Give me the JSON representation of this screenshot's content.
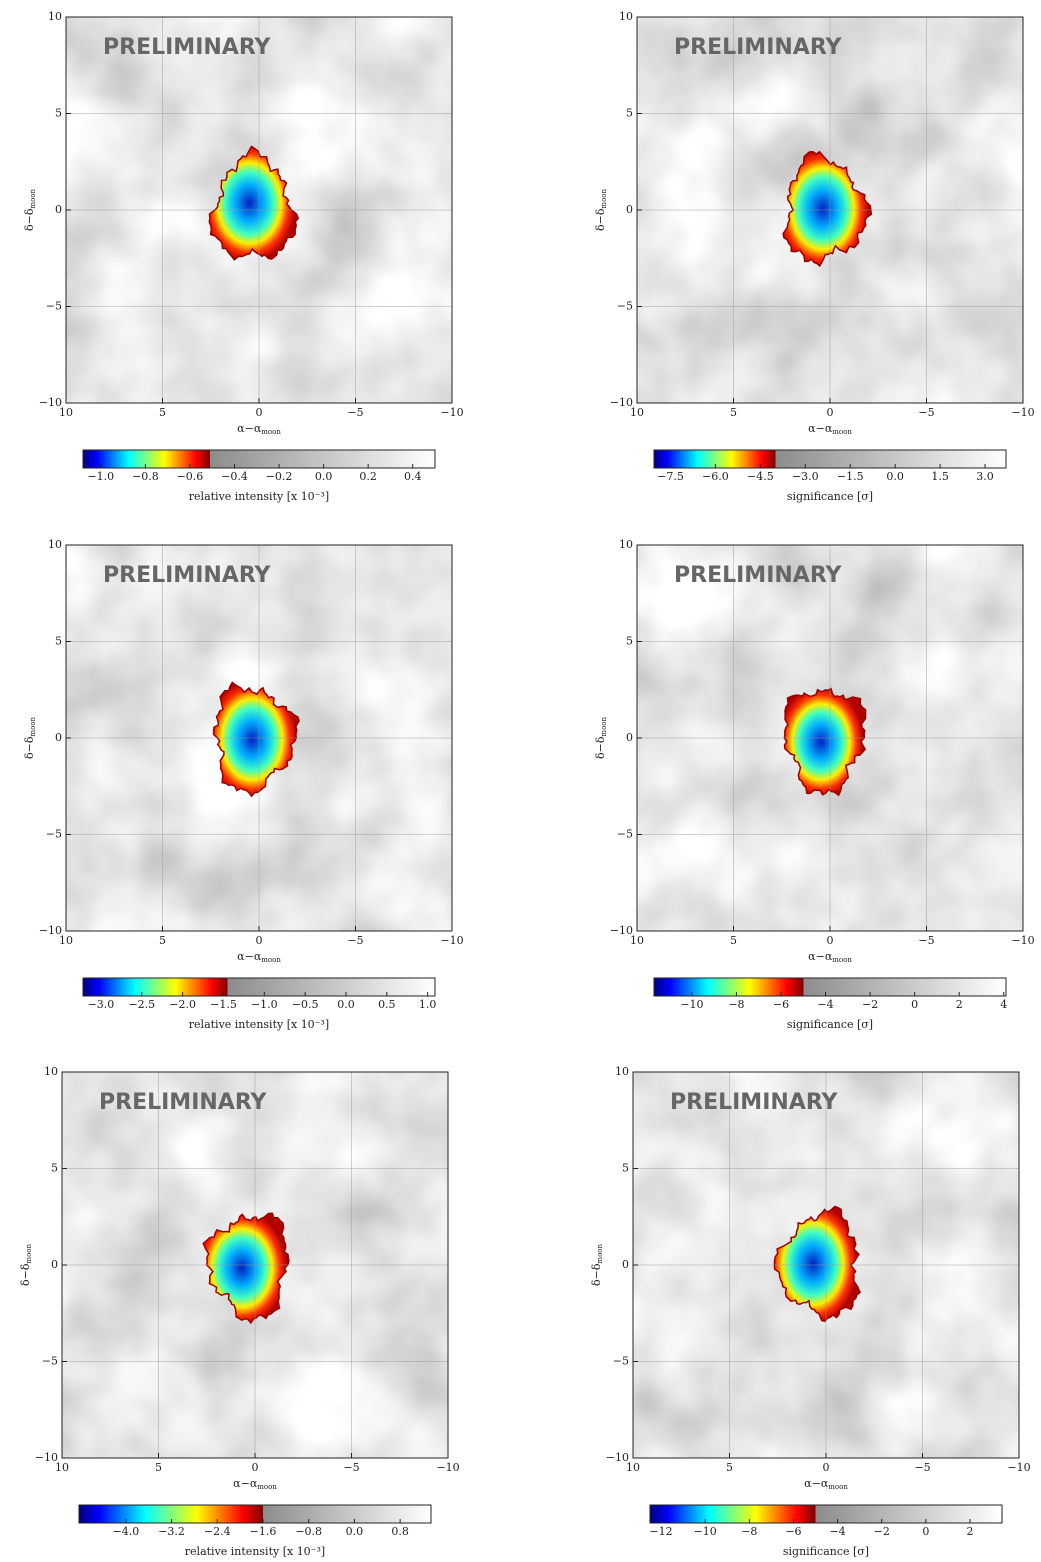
{
  "chart_data": [
    {
      "type": "heatmap",
      "annotation": "PRELIMINARY",
      "xlabel": "α−α",
      "xlabel_subscript": "moon",
      "ylabel": "δ−δ",
      "ylabel_subscript": "moon",
      "xlim": [
        10,
        -10
      ],
      "ylim": [
        -10,
        10
      ],
      "grid": true,
      "xticks": [
        10,
        5,
        0,
        {
          "value": -5,
          "label": "−5"
        },
        {
          "value": -10,
          "label": "−10"
        }
      ],
      "yticks": [
        {
          "value": -10,
          "label": "−10"
        },
        {
          "value": -5,
          "label": "−5"
        },
        0,
        5,
        10
      ],
      "colorbar": {
        "label": "relative intensity [x 10⁻³]",
        "clim": [
          -1.08,
          0.5
        ],
        "threshold": -0.51,
        "ticks": [
          {
            "value": -1.0,
            "label": "−1.0"
          },
          {
            "value": -0.8,
            "label": "−0.8"
          },
          {
            "value": -0.6,
            "label": "−0.6"
          },
          {
            "value": -0.4,
            "label": "−0.4"
          },
          {
            "value": -0.2,
            "label": "−0.2"
          },
          {
            "value": 0,
            "label": "0.0"
          },
          0.2,
          0.4
        ]
      }
    },
    {
      "type": "heatmap",
      "annotation": "PRELIMINARY",
      "xlabel": "α−α",
      "xlabel_subscript": "moon",
      "ylabel": "δ−δ",
      "ylabel_subscript": "moon",
      "xlim": [
        10,
        -10
      ],
      "ylim": [
        -10,
        10
      ],
      "grid": true,
      "xticks": [
        10,
        5,
        0,
        {
          "value": -5,
          "label": "−5"
        },
        {
          "value": -10,
          "label": "−10"
        }
      ],
      "yticks": [
        {
          "value": -10,
          "label": "−10"
        },
        {
          "value": -5,
          "label": "−5"
        },
        0,
        5,
        10
      ],
      "colorbar": {
        "label": "significance [σ]",
        "clim": [
          -8.05,
          3.7
        ],
        "threshold": -4,
        "ticks": [
          {
            "value": -7.5,
            "label": "−7.5"
          },
          {
            "value": -6,
            "label": "−6.0"
          },
          {
            "value": -4.5,
            "label": "−4.5"
          },
          {
            "value": -3,
            "label": "−3.0"
          },
          {
            "value": -1.5,
            "label": "−1.5"
          },
          {
            "value": 0,
            "label": "0.0"
          },
          1.5,
          {
            "value": 3,
            "label": "3.0"
          }
        ]
      }
    },
    {
      "type": "heatmap",
      "annotation": "PRELIMINARY",
      "xlabel": "α−α",
      "xlabel_subscript": "moon",
      "ylabel": "δ−δ",
      "ylabel_subscript": "moon",
      "xlim": [
        10,
        -10
      ],
      "ylim": [
        -10,
        10
      ],
      "grid": true,
      "xticks": [
        10,
        5,
        0,
        {
          "value": -5,
          "label": "−5"
        },
        {
          "value": -10,
          "label": "−10"
        }
      ],
      "yticks": [
        {
          "value": -10,
          "label": "−10"
        },
        {
          "value": -5,
          "label": "−5"
        },
        0,
        5,
        10
      ],
      "colorbar": {
        "label": "relative intensity [x 10⁻³]",
        "clim": [
          -3.22,
          1.09
        ],
        "threshold": -1.45,
        "ticks": [
          {
            "value": -3,
            "label": "−3.0"
          },
          {
            "value": -2.5,
            "label": "−2.5"
          },
          {
            "value": -2,
            "label": "−2.0"
          },
          {
            "value": -1.5,
            "label": "−1.5"
          },
          {
            "value": -1,
            "label": "−1.0"
          },
          {
            "value": -0.5,
            "label": "−0.5"
          },
          {
            "value": 0,
            "label": "0.0"
          },
          0.5,
          {
            "value": 1,
            "label": "1.0"
          }
        ]
      }
    },
    {
      "type": "heatmap",
      "annotation": "PRELIMINARY",
      "xlabel": "α−α",
      "xlabel_subscript": "moon",
      "ylabel": "δ−δ",
      "ylabel_subscript": "moon",
      "xlim": [
        10,
        -10
      ],
      "ylim": [
        -10,
        10
      ],
      "grid": true,
      "xticks": [
        10,
        5,
        0,
        {
          "value": -5,
          "label": "−5"
        },
        {
          "value": -10,
          "label": "−10"
        }
      ],
      "yticks": [
        {
          "value": -10,
          "label": "−10"
        },
        {
          "value": -5,
          "label": "−5"
        },
        0,
        5,
        10
      ],
      "colorbar": {
        "label": "significance [σ]",
        "clim": [
          -11.7,
          4.1
        ],
        "threshold": -5,
        "ticks": [
          {
            "value": -10,
            "label": "−10"
          },
          {
            "value": -8,
            "label": "−8"
          },
          {
            "value": -6,
            "label": "−6"
          },
          {
            "value": -4,
            "label": "−4"
          },
          {
            "value": -2,
            "label": "−2"
          },
          0,
          2,
          4
        ]
      }
    },
    {
      "type": "heatmap",
      "annotation": "PRELIMINARY",
      "xlabel": "α−α",
      "xlabel_subscript": "moon",
      "ylabel": "δ−δ",
      "ylabel_subscript": "moon",
      "xlim": [
        10,
        -10
      ],
      "ylim": [
        -10,
        10
      ],
      "grid": true,
      "xticks": [
        10,
        5,
        0,
        {
          "value": -5,
          "label": "−5"
        },
        {
          "value": -10,
          "label": "−10"
        }
      ],
      "yticks": [
        {
          "value": -10,
          "label": "−10"
        },
        {
          "value": -5,
          "label": "−5"
        },
        0,
        5,
        10
      ],
      "colorbar": {
        "label": "relative intensity [x 10⁻³]",
        "clim": [
          -4.82,
          1.34
        ],
        "threshold": -1.6,
        "ticks": [
          {
            "value": -4,
            "label": "−4.0"
          },
          {
            "value": -3.2,
            "label": "−3.2"
          },
          {
            "value": -2.4,
            "label": "−2.4"
          },
          {
            "value": -1.6,
            "label": "−1.6"
          },
          {
            "value": -0.8,
            "label": "−0.8"
          },
          {
            "value": 0,
            "label": "0.0"
          },
          0.8
        ]
      }
    },
    {
      "type": "heatmap",
      "annotation": "PRELIMINARY",
      "xlabel": "α−α",
      "xlabel_subscript": "moon",
      "ylabel": "δ−δ",
      "ylabel_subscript": "moon",
      "xlim": [
        10,
        -10
      ],
      "ylim": [
        -10,
        10
      ],
      "grid": true,
      "xticks": [
        10,
        5,
        0,
        {
          "value": -5,
          "label": "−5"
        },
        {
          "value": -10,
          "label": "−10"
        }
      ],
      "yticks": [
        {
          "value": -10,
          "label": "−10"
        },
        {
          "value": -5,
          "label": "−5"
        },
        0,
        5,
        10
      ],
      "colorbar": {
        "label": "significance [σ]",
        "clim": [
          -12.5,
          3.45
        ],
        "threshold": -5,
        "ticks": [
          {
            "value": -12,
            "label": "−12"
          },
          {
            "value": -10,
            "label": "−10"
          },
          {
            "value": -8,
            "label": "−8"
          },
          {
            "value": -6,
            "label": "−6"
          },
          {
            "value": -4,
            "label": "−4"
          },
          {
            "value": -2,
            "label": "−2"
          },
          0,
          2
        ]
      }
    }
  ]
}
